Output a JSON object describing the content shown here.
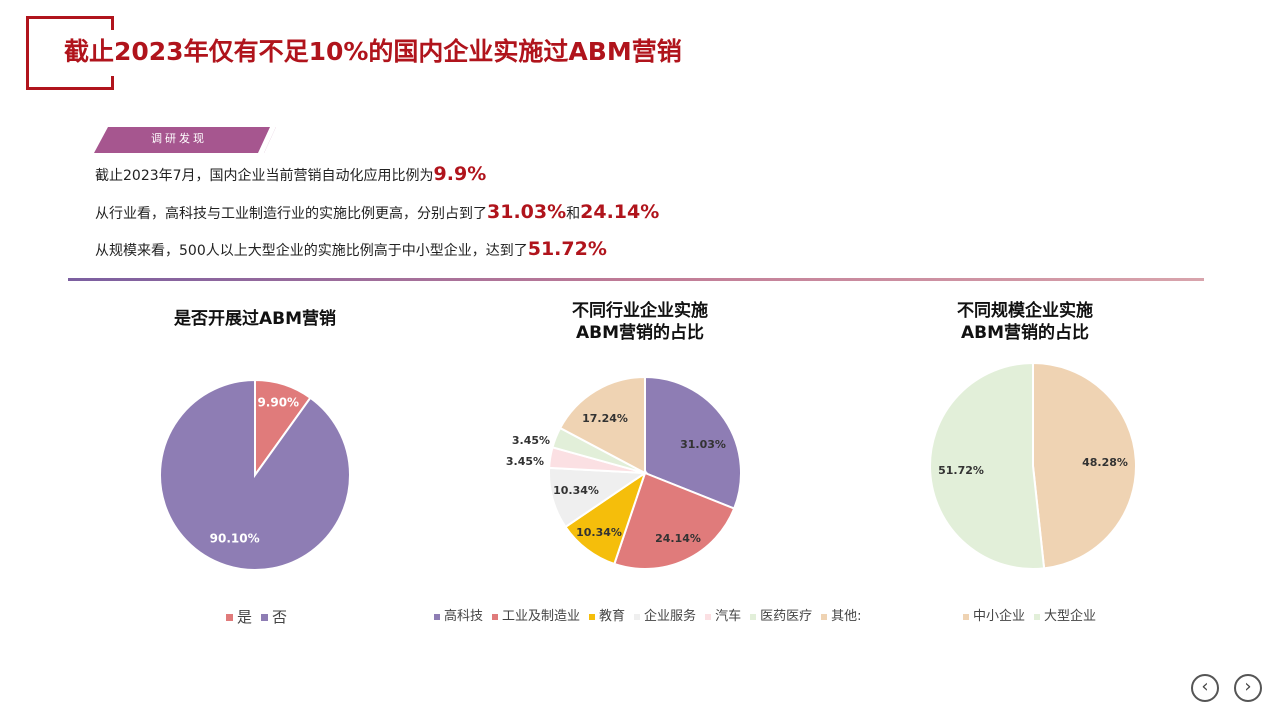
{
  "header": {
    "title": "截止2023年仅有不足10%的国内企业实施过ABM营销"
  },
  "tag": {
    "label": "调研发现"
  },
  "findings": [
    {
      "text": "截止2023年7月，国内企业当前营销自动化应用比例为",
      "highlight": "9.9%",
      "tail": "",
      "highlight2": ""
    },
    {
      "text": "从行业看，高科技与工业制造行业的实施比例更高，分别占到了",
      "highlight": "31.03%",
      "tail": "和",
      "highlight2": "24.14%"
    },
    {
      "text": "从规模来看，500人以上大型企业的实施比例高于中小型企业，达到了",
      "highlight": "51.72%",
      "tail": "",
      "highlight2": ""
    }
  ],
  "chart_data": [
    {
      "type": "pie",
      "title": "是否开展过ABM营销",
      "labels": [
        "是",
        "否"
      ],
      "values": [
        9.9,
        90.1
      ],
      "data_labels": [
        "9.90%",
        "90.10%"
      ],
      "colors": [
        "#e07b7b",
        "#8e7db4"
      ],
      "legend": "bottom"
    },
    {
      "type": "pie",
      "title": "不同行业企业实施\nABM营销的占比",
      "labels": [
        "高科技",
        "工业及制造业",
        "教育",
        "企业服务",
        "汽车",
        "医药医疗",
        "其他:"
      ],
      "values": [
        31.03,
        24.14,
        10.34,
        10.34,
        3.45,
        3.45,
        17.24
      ],
      "data_labels": [
        "31.03%",
        "24.14%",
        "10.34%",
        "10.34%",
        "3.45%",
        "3.45%",
        "17.24%"
      ],
      "colors": [
        "#8e7db4",
        "#e07b7b",
        "#f5be0b",
        "#efefef",
        "#fbe0e3",
        "#e2efd9",
        "#efd3b3"
      ],
      "legend": "bottom"
    },
    {
      "type": "pie",
      "title": "不同规模企业实施\nABM营销的占比",
      "labels": [
        "中小企业",
        "大型企业"
      ],
      "values": [
        48.28,
        51.72
      ],
      "data_labels": [
        "48.28%",
        "51.72%"
      ],
      "colors": [
        "#efd3b3",
        "#e2efd9"
      ],
      "legend": "bottom"
    }
  ],
  "nav": {
    "prev_icon": "chevron-left-icon",
    "next_icon": "chevron-right-icon",
    "prev_glyph": "‹",
    "next_glyph": "›"
  }
}
